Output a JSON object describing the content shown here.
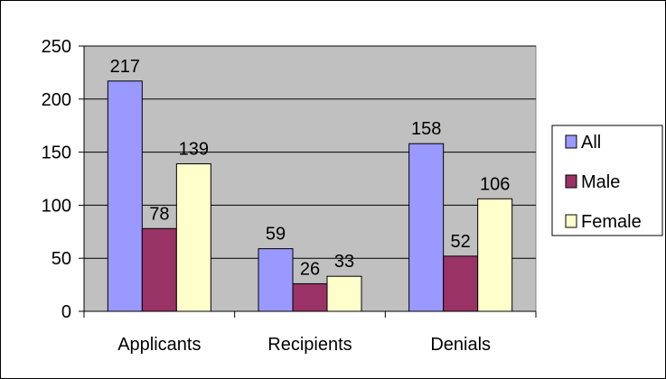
{
  "chart_data": {
    "type": "bar",
    "categories": [
      "Applicants",
      "Recipients",
      "Denials"
    ],
    "series": [
      {
        "name": "All",
        "values": [
          217,
          59,
          158
        ],
        "color": "#9999ff"
      },
      {
        "name": "Male",
        "values": [
          78,
          26,
          52
        ],
        "color": "#993366"
      },
      {
        "name": "Female",
        "values": [
          139,
          33,
          106
        ],
        "color": "#ffffcc"
      }
    ],
    "ylim": [
      0,
      250
    ],
    "yticks": [
      "0",
      "50",
      "100",
      "150",
      "200",
      "250"
    ],
    "plot_background": "#c0c0c0",
    "legend_position": "right",
    "grid": true,
    "data_labels": true,
    "title": "",
    "xlabel": "",
    "ylabel": ""
  }
}
